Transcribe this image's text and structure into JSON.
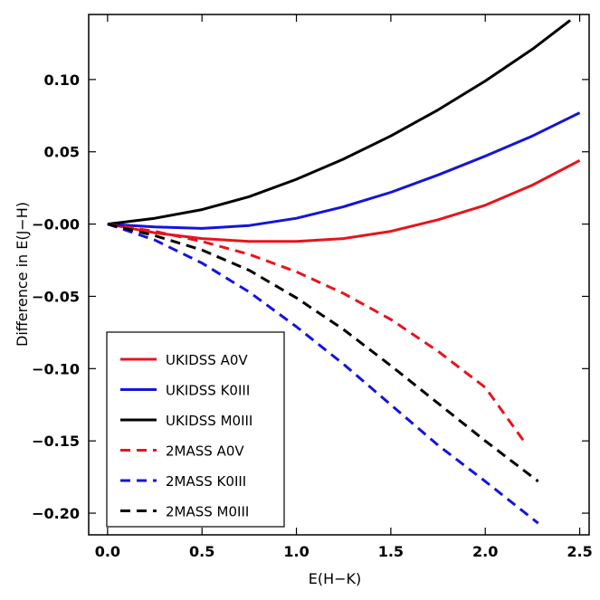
{
  "chart_data": {
    "type": "line",
    "title": "",
    "xlabel": "E(H−K)",
    "ylabel": "Difference in E(J−H)",
    "xlim": [
      -0.1,
      2.55
    ],
    "ylim": [
      -0.215,
      0.145
    ],
    "xticks": [
      0.0,
      0.5,
      1.0,
      1.5,
      2.0,
      2.5
    ],
    "xtick_labels": [
      "0.0",
      "0.5",
      "1.0",
      "1.5",
      "2.0",
      "2.5"
    ],
    "yticks": [
      0.1,
      0.05,
      0.0,
      -0.05,
      -0.1,
      -0.15,
      -0.2
    ],
    "ytick_labels": [
      "0.10",
      "0.05",
      "−0.00",
      "−0.05",
      "−0.10",
      "−0.15",
      "−0.20"
    ],
    "grid": false,
    "legend_position": "bottom-left",
    "series": [
      {
        "name": "UKIDSS A0V",
        "color": "#e8141c",
        "dash": "solid",
        "x": [
          0.0,
          0.25,
          0.5,
          0.75,
          1.0,
          1.25,
          1.5,
          1.75,
          2.0,
          2.25,
          2.5
        ],
        "y": [
          0.0,
          -0.006,
          -0.01,
          -0.012,
          -0.012,
          -0.01,
          -0.005,
          0.003,
          0.013,
          0.027,
          0.044
        ]
      },
      {
        "name": "UKIDSS K0III",
        "color": "#1414dc",
        "dash": "solid",
        "x": [
          0.0,
          0.25,
          0.5,
          0.75,
          1.0,
          1.25,
          1.5,
          1.75,
          2.0,
          2.25,
          2.5
        ],
        "y": [
          0.0,
          -0.002,
          -0.003,
          -0.001,
          0.004,
          0.012,
          0.022,
          0.034,
          0.047,
          0.061,
          0.077
        ]
      },
      {
        "name": "UKIDSS M0III",
        "color": "#000000",
        "dash": "solid",
        "x": [
          0.0,
          0.25,
          0.5,
          0.75,
          1.0,
          1.25,
          1.5,
          1.75,
          2.0,
          2.25,
          2.45
        ],
        "y": [
          0.0,
          0.004,
          0.01,
          0.019,
          0.031,
          0.045,
          0.061,
          0.079,
          0.099,
          0.121,
          0.141
        ]
      },
      {
        "name": "2MASS A0V",
        "color": "#e8141c",
        "dash": "dashed",
        "x": [
          0.0,
          0.25,
          0.5,
          0.75,
          1.0,
          1.25,
          1.5,
          1.75,
          2.0,
          2.22
        ],
        "y": [
          0.0,
          -0.005,
          -0.012,
          -0.021,
          -0.033,
          -0.048,
          -0.066,
          -0.088,
          -0.113,
          -0.153
        ]
      },
      {
        "name": "2MASS K0III",
        "color": "#1414dc",
        "dash": "dashed",
        "x": [
          0.0,
          0.25,
          0.5,
          0.75,
          1.0,
          1.25,
          1.5,
          1.75,
          2.0,
          2.28
        ],
        "y": [
          0.0,
          -0.011,
          -0.027,
          -0.047,
          -0.071,
          -0.097,
          -0.125,
          -0.153,
          -0.178,
          -0.207
        ]
      },
      {
        "name": "2MASS M0III",
        "color": "#000000",
        "dash": "dashed",
        "x": [
          0.0,
          0.25,
          0.5,
          0.75,
          1.0,
          1.25,
          1.5,
          1.75,
          2.0,
          2.28
        ],
        "y": [
          0.0,
          -0.008,
          -0.018,
          -0.032,
          -0.051,
          -0.073,
          -0.098,
          -0.124,
          -0.15,
          -0.178
        ]
      }
    ]
  }
}
